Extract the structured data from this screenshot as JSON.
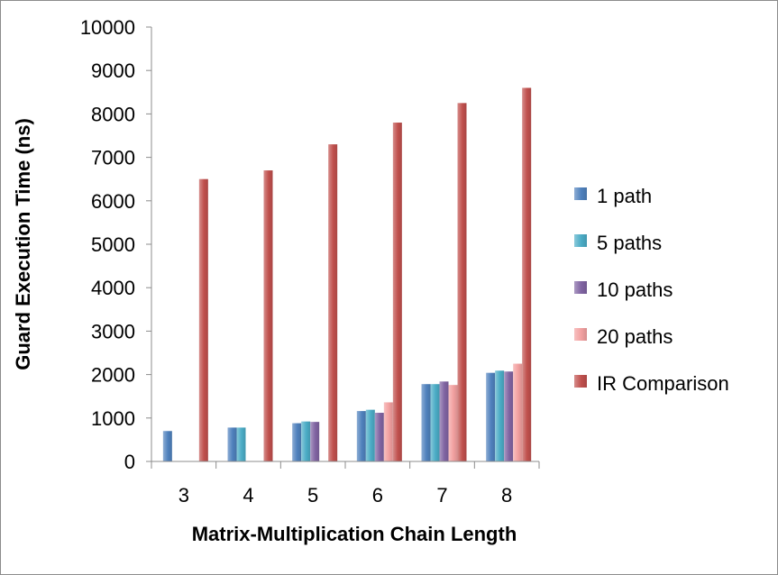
{
  "chart_data": {
    "type": "bar",
    "title": "",
    "xlabel": "Matrix-Multiplication Chain Length",
    "ylabel": "Guard Execution Time (ns)",
    "ylim": [
      0,
      10000
    ],
    "yticks": [
      0,
      1000,
      2000,
      3000,
      4000,
      5000,
      6000,
      7000,
      8000,
      9000,
      10000
    ],
    "grid": false,
    "legend_position": "right",
    "categories": [
      "3",
      "4",
      "5",
      "6",
      "7",
      "8"
    ],
    "series": [
      {
        "name": "1 path",
        "color": "#4f81bd",
        "values": [
          700,
          780,
          880,
          1160,
          1780,
          2040
        ]
      },
      {
        "name": "5 paths",
        "color": "#4bacc6",
        "values": [
          0,
          780,
          920,
          1190,
          1780,
          2090
        ]
      },
      {
        "name": "10 paths",
        "color": "#8064a2",
        "values": [
          0,
          0,
          910,
          1120,
          1840,
          2070
        ]
      },
      {
        "name": "20 paths",
        "color": "#f2a0a0",
        "values": [
          0,
          0,
          0,
          1360,
          1760,
          2250
        ]
      },
      {
        "name": "IR Comparison",
        "color": "#c0504d",
        "values": [
          6500,
          6700,
          7300,
          7800,
          8250,
          8600
        ]
      }
    ]
  }
}
